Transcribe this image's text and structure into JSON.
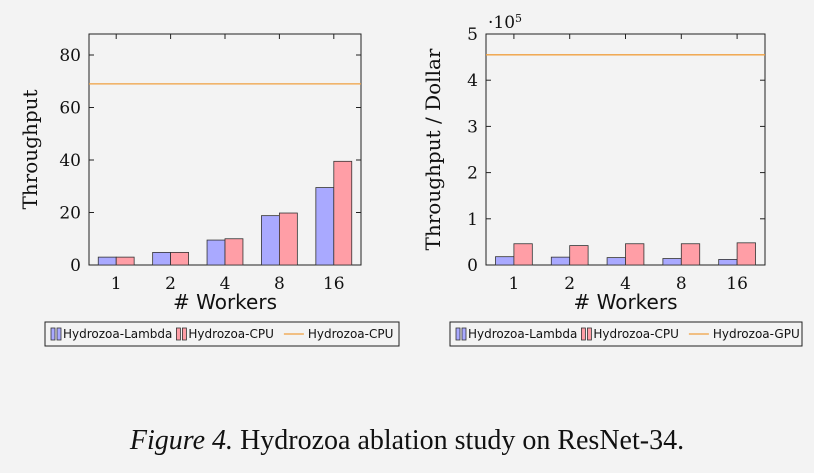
{
  "chart_data": [
    {
      "type": "bar",
      "ylabel": "Throughput",
      "xlabel": "# Workers",
      "categories": [
        "1",
        "2",
        "4",
        "8",
        "16"
      ],
      "ylim": [
        0,
        88
      ],
      "yticks": [
        "0",
        "20",
        "40",
        "60",
        "80"
      ],
      "ytick_values": [
        0,
        20,
        40,
        60,
        80
      ],
      "series": [
        {
          "name": "Hydrozoa-Lambda",
          "values": [
            3.0,
            4.8,
            9.5,
            18.8,
            29.5
          ],
          "color": "#a9a9ff"
        },
        {
          "name": "Hydrozoa-CPU",
          "values": [
            3.0,
            4.8,
            10.0,
            19.8,
            39.5
          ],
          "color": "#ff9ea6"
        }
      ],
      "hline": {
        "name": "Hydrozoa-CPU",
        "value": 69,
        "color": "#f0a040"
      }
    },
    {
      "type": "bar",
      "ylabel": "Throughput / Dollar",
      "xlabel": "# Workers",
      "categories": [
        "1",
        "2",
        "4",
        "8",
        "16"
      ],
      "ylim": [
        0,
        5
      ],
      "yticks": [
        "0",
        "1",
        "2",
        "3",
        "4",
        "5"
      ],
      "ytick_values": [
        0,
        1,
        2,
        3,
        4,
        5
      ],
      "scale_label_base": "·10",
      "scale_label_exp": "5",
      "series": [
        {
          "name": "Hydrozoa-Lambda",
          "values": [
            0.18,
            0.17,
            0.16,
            0.14,
            0.12
          ],
          "color": "#a9a9ff"
        },
        {
          "name": "Hydrozoa-CPU",
          "values": [
            0.46,
            0.42,
            0.46,
            0.46,
            0.48
          ],
          "color": "#ff9ea6"
        }
      ],
      "hline": {
        "name": "Hydrozoa-GPU",
        "value": 4.55,
        "color": "#f0a040"
      }
    }
  ],
  "caption": {
    "label": "Figure 4.",
    "text": " Hydrozoa ablation study on ResNet-34."
  }
}
